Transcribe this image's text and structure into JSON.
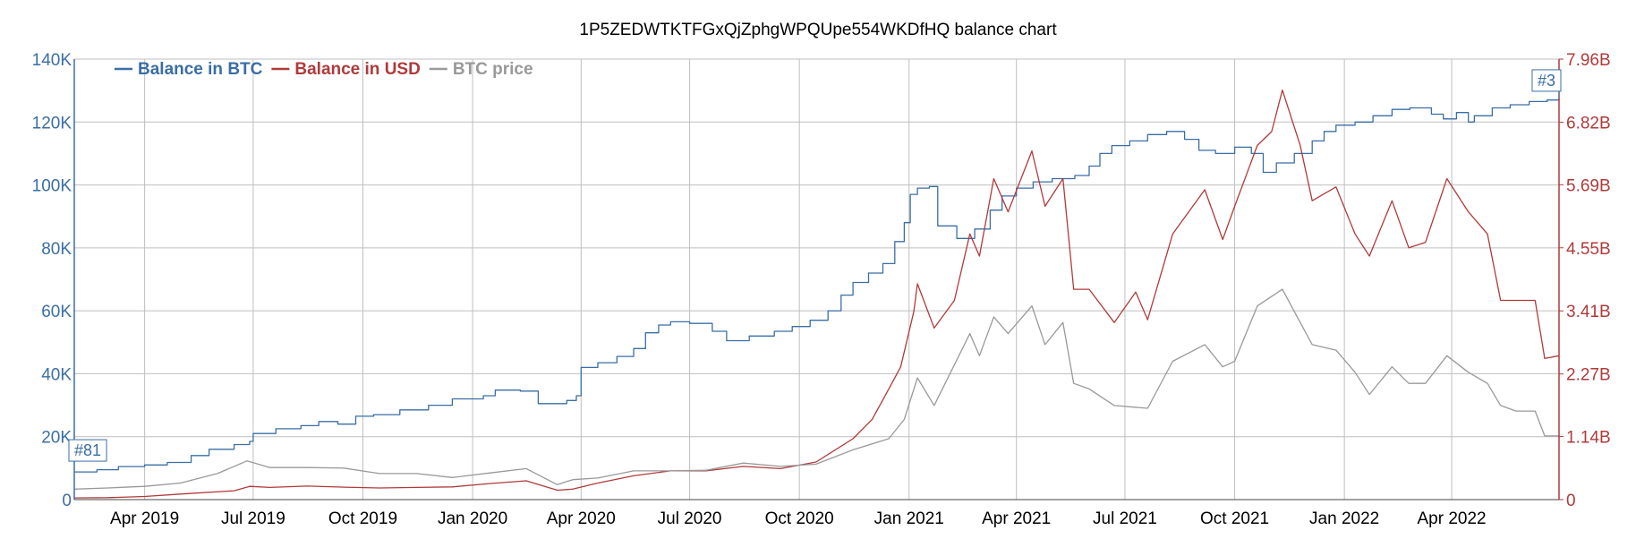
{
  "chart_data": {
    "type": "line",
    "title": "1P5ZEDWTKTFGxQjZphgWPQUpe554WKDfHQ balance chart",
    "x_range": [
      "2019-02-01",
      "2022-06-30"
    ],
    "x_ticks": [
      {
        "date": "2019-04-01",
        "label": "Apr 2019"
      },
      {
        "date": "2019-07-01",
        "label": "Jul 2019"
      },
      {
        "date": "2019-10-01",
        "label": "Oct 2019"
      },
      {
        "date": "2020-01-01",
        "label": "Jan 2020"
      },
      {
        "date": "2020-04-01",
        "label": "Apr 2020"
      },
      {
        "date": "2020-07-01",
        "label": "Jul 2020"
      },
      {
        "date": "2020-10-01",
        "label": "Oct 2020"
      },
      {
        "date": "2021-01-01",
        "label": "Jan 2021"
      },
      {
        "date": "2021-04-01",
        "label": "Apr 2021"
      },
      {
        "date": "2021-07-01",
        "label": "Jul 2021"
      },
      {
        "date": "2021-10-01",
        "label": "Oct 2021"
      },
      {
        "date": "2022-01-01",
        "label": "Jan 2022"
      },
      {
        "date": "2022-04-01",
        "label": "Apr 2022"
      }
    ],
    "y_left": {
      "min": 0,
      "max": 140000,
      "ticks": [
        {
          "value": 0,
          "label": "0"
        },
        {
          "value": 20000,
          "label": "20K"
        },
        {
          "value": 40000,
          "label": "40K"
        },
        {
          "value": 60000,
          "label": "60K"
        },
        {
          "value": 80000,
          "label": "80K"
        },
        {
          "value": 100000,
          "label": "100K"
        },
        {
          "value": 120000,
          "label": "120K"
        },
        {
          "value": 140000,
          "label": "140K"
        }
      ]
    },
    "y_right": {
      "min": 0,
      "max": 7960000000,
      "ticks": [
        {
          "value": 0,
          "label": "0"
        },
        {
          "value": 1140000000,
          "label": "1.14B"
        },
        {
          "value": 2270000000,
          "label": "2.27B"
        },
        {
          "value": 3410000000,
          "label": "3.41B"
        },
        {
          "value": 4550000000,
          "label": "4.55B"
        },
        {
          "value": 5690000000,
          "label": "5.69B"
        },
        {
          "value": 6820000000,
          "label": "6.82B"
        },
        {
          "value": 7960000000,
          "label": "7.96B"
        }
      ]
    },
    "grid": true,
    "legend_position": "top-left",
    "series": [
      {
        "name": "Balance in BTC",
        "color": "#3a6ea5",
        "axis": "left",
        "step": true,
        "points": [
          [
            "2019-02-01",
            8800
          ],
          [
            "2019-02-20",
            9500
          ],
          [
            "2019-03-10",
            10500
          ],
          [
            "2019-04-01",
            11000
          ],
          [
            "2019-04-20",
            11800
          ],
          [
            "2019-05-10",
            14000
          ],
          [
            "2019-05-25",
            16000
          ],
          [
            "2019-06-15",
            17500
          ],
          [
            "2019-06-28",
            18500
          ],
          [
            "2019-07-01",
            21000
          ],
          [
            "2019-07-20",
            22500
          ],
          [
            "2019-08-10",
            23500
          ],
          [
            "2019-08-25",
            24800
          ],
          [
            "2019-09-10",
            24000
          ],
          [
            "2019-09-25",
            26500
          ],
          [
            "2019-10-10",
            27000
          ],
          [
            "2019-11-01",
            28500
          ],
          [
            "2019-11-25",
            30000
          ],
          [
            "2019-12-15",
            32000
          ],
          [
            "2020-01-10",
            33000
          ],
          [
            "2020-01-20",
            34800
          ],
          [
            "2020-02-10",
            34500
          ],
          [
            "2020-02-25",
            30500
          ],
          [
            "2020-03-20",
            31500
          ],
          [
            "2020-03-28",
            33000
          ],
          [
            "2020-04-01",
            42000
          ],
          [
            "2020-04-15",
            43500
          ],
          [
            "2020-05-01",
            45500
          ],
          [
            "2020-05-15",
            48000
          ],
          [
            "2020-05-25",
            53000
          ],
          [
            "2020-06-05",
            55500
          ],
          [
            "2020-06-15",
            56500
          ],
          [
            "2020-07-01",
            56000
          ],
          [
            "2020-07-20",
            53500
          ],
          [
            "2020-08-01",
            50500
          ],
          [
            "2020-08-20",
            52000
          ],
          [
            "2020-09-10",
            53500
          ],
          [
            "2020-09-25",
            55000
          ],
          [
            "2020-10-10",
            57000
          ],
          [
            "2020-10-25",
            60000
          ],
          [
            "2020-11-05",
            65000
          ],
          [
            "2020-11-15",
            69000
          ],
          [
            "2020-11-28",
            72000
          ],
          [
            "2020-12-10",
            75000
          ],
          [
            "2020-12-20",
            82000
          ],
          [
            "2020-12-28",
            88000
          ],
          [
            "2021-01-02",
            97000
          ],
          [
            "2021-01-08",
            99000
          ],
          [
            "2021-01-18",
            99500
          ],
          [
            "2021-01-25",
            87000
          ],
          [
            "2021-02-10",
            83000
          ],
          [
            "2021-02-25",
            86000
          ],
          [
            "2021-03-10",
            92000
          ],
          [
            "2021-03-20",
            96500
          ],
          [
            "2021-04-01",
            99000
          ],
          [
            "2021-04-15",
            101000
          ],
          [
            "2021-05-01",
            102000
          ],
          [
            "2021-05-20",
            103000
          ],
          [
            "2021-06-01",
            106000
          ],
          [
            "2021-06-10",
            110000
          ],
          [
            "2021-06-20",
            112500
          ],
          [
            "2021-07-05",
            114000
          ],
          [
            "2021-07-20",
            116000
          ],
          [
            "2021-08-05",
            117000
          ],
          [
            "2021-08-20",
            114500
          ],
          [
            "2021-09-01",
            111000
          ],
          [
            "2021-09-15",
            110000
          ],
          [
            "2021-10-01",
            112000
          ],
          [
            "2021-10-15",
            110000
          ],
          [
            "2021-10-25",
            104000
          ],
          [
            "2021-11-05",
            107000
          ],
          [
            "2021-11-20",
            110000
          ],
          [
            "2021-12-05",
            114000
          ],
          [
            "2021-12-15",
            117000
          ],
          [
            "2021-12-25",
            119000
          ],
          [
            "2022-01-10",
            120000
          ],
          [
            "2022-01-25",
            122000
          ],
          [
            "2022-02-10",
            124000
          ],
          [
            "2022-02-25",
            124500
          ],
          [
            "2022-03-15",
            122500
          ],
          [
            "2022-03-25",
            121000
          ],
          [
            "2022-04-05",
            123000
          ],
          [
            "2022-04-15",
            120000
          ],
          [
            "2022-04-20",
            122000
          ],
          [
            "2022-05-05",
            124500
          ],
          [
            "2022-05-20",
            125500
          ],
          [
            "2022-06-05",
            126500
          ],
          [
            "2022-06-20",
            127000
          ],
          [
            "2022-06-30",
            127500
          ]
        ]
      },
      {
        "name": "Balance in USD",
        "color": "#b03a3a",
        "axis": "right",
        "points": [
          [
            "2019-02-01",
            30000000
          ],
          [
            "2019-03-01",
            36000000
          ],
          [
            "2019-04-01",
            57000000
          ],
          [
            "2019-05-01",
            100000000
          ],
          [
            "2019-06-15",
            160000000
          ],
          [
            "2019-06-28",
            240000000
          ],
          [
            "2019-07-15",
            220000000
          ],
          [
            "2019-08-15",
            245000000
          ],
          [
            "2019-09-15",
            225000000
          ],
          [
            "2019-10-15",
            210000000
          ],
          [
            "2019-11-15",
            220000000
          ],
          [
            "2019-12-15",
            230000000
          ],
          [
            "2020-01-15",
            290000000
          ],
          [
            "2020-02-15",
            340000000
          ],
          [
            "2020-03-12",
            170000000
          ],
          [
            "2020-03-25",
            190000000
          ],
          [
            "2020-04-15",
            300000000
          ],
          [
            "2020-05-15",
            430000000
          ],
          [
            "2020-06-15",
            520000000
          ],
          [
            "2020-07-15",
            520000000
          ],
          [
            "2020-08-15",
            600000000
          ],
          [
            "2020-09-15",
            560000000
          ],
          [
            "2020-10-15",
            680000000
          ],
          [
            "2020-11-15",
            1100000000
          ],
          [
            "2020-12-01",
            1450000000
          ],
          [
            "2020-12-15",
            2000000000
          ],
          [
            "2020-12-25",
            2400000000
          ],
          [
            "2021-01-05",
            3400000000
          ],
          [
            "2021-01-08",
            3900000000
          ],
          [
            "2021-01-22",
            3100000000
          ],
          [
            "2021-02-08",
            3600000000
          ],
          [
            "2021-02-21",
            4800000000
          ],
          [
            "2021-03-01",
            4400000000
          ],
          [
            "2021-03-13",
            5800000000
          ],
          [
            "2021-03-25",
            5200000000
          ],
          [
            "2021-04-14",
            6300000000
          ],
          [
            "2021-04-25",
            5300000000
          ],
          [
            "2021-05-10",
            5800000000
          ],
          [
            "2021-05-19",
            3800000000
          ],
          [
            "2021-06-01",
            3800000000
          ],
          [
            "2021-06-22",
            3200000000
          ],
          [
            "2021-07-10",
            3750000000
          ],
          [
            "2021-07-20",
            3250000000
          ],
          [
            "2021-08-10",
            4800000000
          ],
          [
            "2021-09-06",
            5600000000
          ],
          [
            "2021-09-21",
            4700000000
          ],
          [
            "2021-10-01",
            5300000000
          ],
          [
            "2021-10-20",
            6400000000
          ],
          [
            "2021-11-01",
            6650000000
          ],
          [
            "2021-11-10",
            7400000000
          ],
          [
            "2021-11-25",
            6400000000
          ],
          [
            "2021-12-05",
            5400000000
          ],
          [
            "2021-12-25",
            5650000000
          ],
          [
            "2022-01-10",
            4800000000
          ],
          [
            "2022-01-22",
            4400000000
          ],
          [
            "2022-02-10",
            5400000000
          ],
          [
            "2022-02-24",
            4550000000
          ],
          [
            "2022-03-10",
            4650000000
          ],
          [
            "2022-03-28",
            5800000000
          ],
          [
            "2022-04-15",
            5200000000
          ],
          [
            "2022-05-01",
            4800000000
          ],
          [
            "2022-05-12",
            3600000000
          ],
          [
            "2022-05-25",
            3600000000
          ],
          [
            "2022-06-10",
            3600000000
          ],
          [
            "2022-06-18",
            2550000000
          ],
          [
            "2022-06-30",
            2600000000
          ]
        ]
      },
      {
        "name": "BTC price",
        "color": "#999999",
        "axis": "right",
        "points": [
          [
            "2019-02-01",
            190000000
          ],
          [
            "2019-03-01",
            210000000
          ],
          [
            "2019-04-01",
            240000000
          ],
          [
            "2019-05-01",
            300000000
          ],
          [
            "2019-06-01",
            470000000
          ],
          [
            "2019-06-26",
            700000000
          ],
          [
            "2019-07-15",
            580000000
          ],
          [
            "2019-08-15",
            580000000
          ],
          [
            "2019-09-15",
            570000000
          ],
          [
            "2019-10-15",
            470000000
          ],
          [
            "2019-11-15",
            470000000
          ],
          [
            "2019-12-15",
            400000000
          ],
          [
            "2020-01-15",
            480000000
          ],
          [
            "2020-02-15",
            560000000
          ],
          [
            "2020-03-12",
            270000000
          ],
          [
            "2020-03-25",
            360000000
          ],
          [
            "2020-04-15",
            390000000
          ],
          [
            "2020-05-15",
            520000000
          ],
          [
            "2020-06-15",
            520000000
          ],
          [
            "2020-07-15",
            530000000
          ],
          [
            "2020-08-15",
            660000000
          ],
          [
            "2020-09-15",
            600000000
          ],
          [
            "2020-10-15",
            640000000
          ],
          [
            "2020-11-15",
            900000000
          ],
          [
            "2020-12-15",
            1100000000
          ],
          [
            "2020-12-28",
            1450000000
          ],
          [
            "2021-01-08",
            2200000000
          ],
          [
            "2021-01-22",
            1700000000
          ],
          [
            "2021-02-21",
            3000000000
          ],
          [
            "2021-03-01",
            2600000000
          ],
          [
            "2021-03-13",
            3300000000
          ],
          [
            "2021-03-25",
            3000000000
          ],
          [
            "2021-04-14",
            3500000000
          ],
          [
            "2021-04-25",
            2800000000
          ],
          [
            "2021-05-10",
            3200000000
          ],
          [
            "2021-05-19",
            2100000000
          ],
          [
            "2021-06-01",
            2000000000
          ],
          [
            "2021-06-22",
            1700000000
          ],
          [
            "2021-07-20",
            1650000000
          ],
          [
            "2021-08-10",
            2500000000
          ],
          [
            "2021-09-06",
            2800000000
          ],
          [
            "2021-09-21",
            2400000000
          ],
          [
            "2021-10-01",
            2500000000
          ],
          [
            "2021-10-20",
            3500000000
          ],
          [
            "2021-11-10",
            3800000000
          ],
          [
            "2021-11-25",
            3200000000
          ],
          [
            "2021-12-05",
            2800000000
          ],
          [
            "2021-12-25",
            2700000000
          ],
          [
            "2022-01-10",
            2300000000
          ],
          [
            "2022-01-22",
            1900000000
          ],
          [
            "2022-02-10",
            2400000000
          ],
          [
            "2022-02-24",
            2100000000
          ],
          [
            "2022-03-10",
            2100000000
          ],
          [
            "2022-03-28",
            2600000000
          ],
          [
            "2022-04-15",
            2300000000
          ],
          [
            "2022-05-01",
            2100000000
          ],
          [
            "2022-05-12",
            1700000000
          ],
          [
            "2022-05-25",
            1600000000
          ],
          [
            "2022-06-10",
            1600000000
          ],
          [
            "2022-06-18",
            1150000000
          ],
          [
            "2022-06-30",
            1150000000
          ]
        ]
      }
    ],
    "flags": [
      {
        "label": "#81",
        "date": "2019-02-01",
        "value": 8800,
        "axis": "left"
      },
      {
        "label": "#3",
        "date": "2022-06-30",
        "value": 127500,
        "axis": "left"
      }
    ]
  }
}
